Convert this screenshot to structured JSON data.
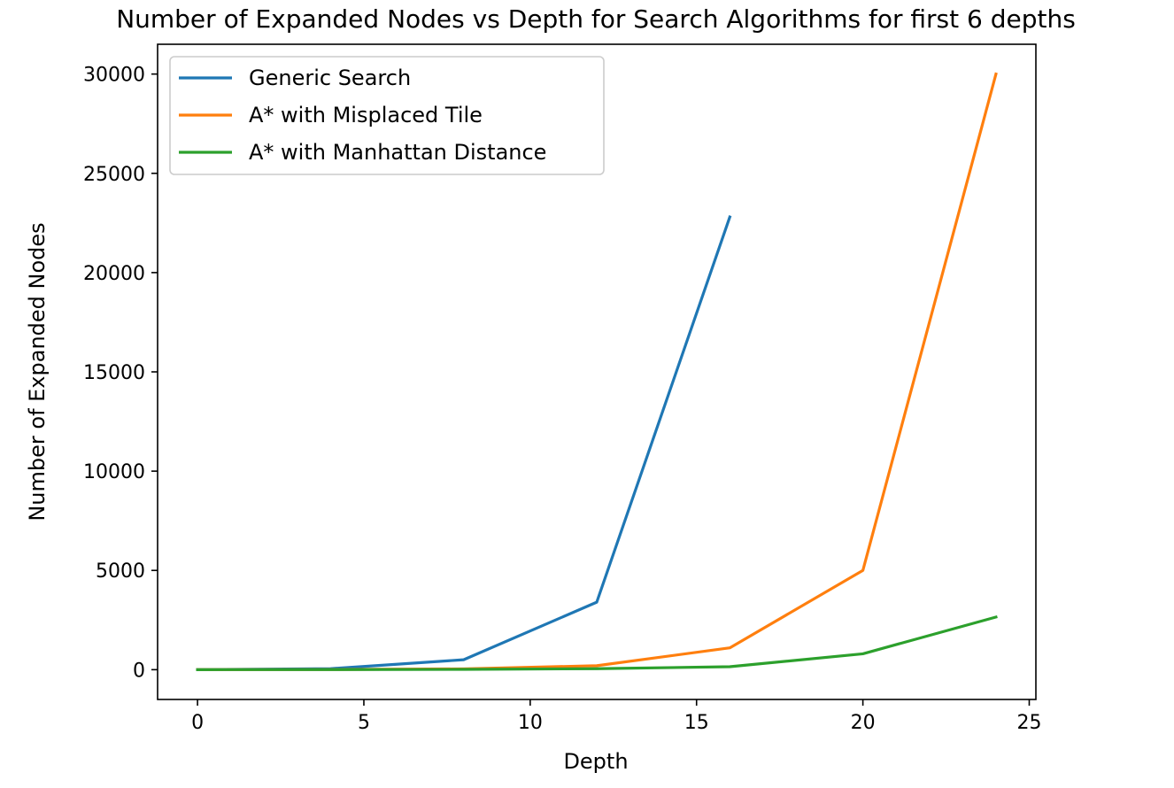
{
  "chart_data": {
    "type": "line",
    "title": "Number of Expanded Nodes vs Depth for Search Algorithms for first 6 depths",
    "xlabel": "Depth",
    "ylabel": "Number of Expanded Nodes",
    "xlim": [
      -1.2,
      25.2
    ],
    "ylim": [
      -1500,
      31500
    ],
    "xticks": [
      0,
      5,
      10,
      15,
      20,
      25
    ],
    "yticks": [
      0,
      5000,
      10000,
      15000,
      20000,
      25000,
      30000
    ],
    "grid": false,
    "legend_position": "top-left",
    "series": [
      {
        "name": "Generic Search",
        "color": "#1f77b4",
        "x": [
          0,
          4,
          8,
          12,
          16
        ],
        "y": [
          0,
          50,
          500,
          3400,
          22800
        ]
      },
      {
        "name": "A* with Misplaced Tile",
        "color": "#ff7f0e",
        "x": [
          0,
          4,
          8,
          12,
          16,
          20,
          24
        ],
        "y": [
          0,
          10,
          40,
          200,
          1100,
          5000,
          30000
        ]
      },
      {
        "name": "A* with Manhattan Distance",
        "color": "#2ca02c",
        "x": [
          0,
          4,
          8,
          12,
          16,
          20,
          24
        ],
        "y": [
          0,
          5,
          15,
          50,
          150,
          800,
          2650
        ]
      }
    ]
  }
}
